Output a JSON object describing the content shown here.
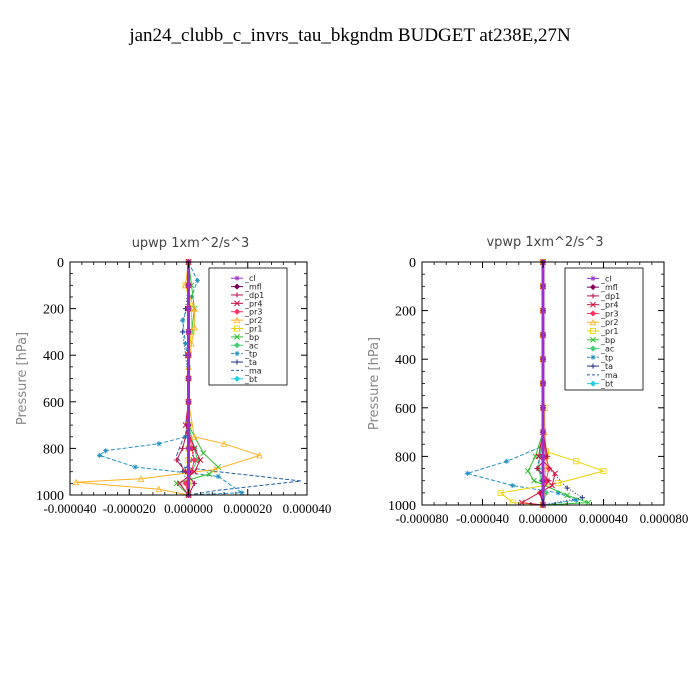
{
  "figure": {
    "title": "jan24_clubb_c_invrs_tau_bkgndm  BUDGET at238E,27N"
  },
  "legend_entries": [
    {
      "label": "_cl",
      "color": "#9b30d0",
      "marker": "star"
    },
    {
      "label": "_mfl",
      "color": "#800060",
      "marker": "diamond"
    },
    {
      "label": "_dp1",
      "color": "#c0104a",
      "marker": "plus"
    },
    {
      "label": "_pr4",
      "color": "#d01040",
      "marker": "cross"
    },
    {
      "label": "_pr3",
      "color": "#ff3060",
      "marker": "diamond"
    },
    {
      "label": "_pr2",
      "color": "#ffb020",
      "marker": "triangle"
    },
    {
      "label": "_pr1",
      "color": "#f0d000",
      "marker": "square"
    },
    {
      "label": "_bp",
      "color": "#30c030",
      "marker": "cross"
    },
    {
      "label": "_ac",
      "color": "#40d070",
      "marker": "diamond"
    },
    {
      "label": "_tp",
      "color": "#2090c0",
      "marker": "star"
    },
    {
      "label": "_ta",
      "color": "#203080",
      "marker": "plus"
    },
    {
      "label": "_ma",
      "color": "#2060a0",
      "marker": "none"
    },
    {
      "label": "_bt",
      "color": "#20d0e0",
      "marker": "diamond"
    }
  ],
  "chart_data": [
    {
      "type": "line",
      "title": "upwp   1xm^2/s^3",
      "ylabel": "Pressure [hPa]",
      "xlabel": "",
      "xlim": [
        -4e-05,
        4e-05
      ],
      "ylim": [
        1000,
        0
      ],
      "xticks": [
        -4e-05,
        -2e-05,
        0.0,
        2e-05,
        4e-05
      ],
      "xtick_labels": [
        "-0.000040",
        "-0.000020",
        "0.000000",
        "0.000020",
        "0.000040"
      ],
      "yticks": [
        0,
        200,
        400,
        600,
        800,
        1000
      ],
      "ytick_labels": [
        "0",
        "200",
        "400",
        "600",
        "800",
        "1000"
      ],
      "grid": false,
      "legend_position": "top-right",
      "series": [
        {
          "name": "_cl",
          "x": [
            0,
            0,
            0,
            0,
            0,
            0,
            0,
            0,
            0,
            0,
            0
          ],
          "y": [
            0,
            100,
            200,
            300,
            400,
            500,
            600,
            700,
            800,
            900,
            1000
          ]
        },
        {
          "name": "_mfl",
          "x": [
            0,
            0,
            0,
            0,
            0,
            0,
            0,
            0,
            0,
            0,
            0
          ],
          "y": [
            0,
            100,
            200,
            300,
            400,
            500,
            600,
            700,
            800,
            900,
            1000
          ]
        },
        {
          "name": "_dp1",
          "x": [
            0,
            0,
            0,
            0,
            0,
            0,
            0,
            0,
            -2e-06,
            -4e-06,
            -1e-06,
            2e-06,
            0
          ],
          "y": [
            0,
            100,
            200,
            300,
            400,
            500,
            600,
            700,
            800,
            850,
            900,
            950,
            1000
          ]
        },
        {
          "name": "_pr4",
          "x": [
            0,
            0,
            0,
            0,
            0,
            0,
            0,
            -1e-06,
            2e-06,
            4e-06,
            2e-06,
            -3e-06,
            0
          ],
          "y": [
            0,
            100,
            200,
            300,
            400,
            500,
            600,
            700,
            800,
            850,
            900,
            950,
            1000
          ]
        },
        {
          "name": "_pr3",
          "x": [
            0,
            0,
            0,
            0,
            0,
            0,
            0,
            0,
            1e-06,
            2e-06,
            1e-06,
            -1e-06,
            0
          ],
          "y": [
            0,
            100,
            200,
            300,
            400,
            500,
            600,
            700,
            800,
            850,
            900,
            950,
            1000
          ]
        },
        {
          "name": "_pr2",
          "x": [
            0,
            -1e-06,
            2e-06,
            2e-06,
            1e-06,
            0,
            0,
            2e-06,
            1.2e-05,
            2.4e-05,
            9e-06,
            -1.6e-05,
            -3.8e-05,
            -1e-05,
            0
          ],
          "y": [
            0,
            100,
            200,
            280,
            350,
            450,
            600,
            750,
            780,
            830,
            890,
            930,
            945,
            975,
            1000
          ]
        },
        {
          "name": "_pr1",
          "x": [
            0,
            -1e-06,
            1e-06,
            1e-06,
            0,
            0,
            0,
            0,
            0,
            0,
            0,
            0,
            0
          ],
          "y": [
            0,
            100,
            200,
            300,
            400,
            500,
            600,
            700,
            800,
            850,
            900,
            950,
            1000
          ]
        },
        {
          "name": "_bp",
          "x": [
            0,
            1e-06,
            2e-06,
            1e-06,
            0,
            0,
            0,
            0,
            5e-06,
            1e-05,
            7e-06,
            -4e-06,
            0
          ],
          "y": [
            0,
            100,
            200,
            300,
            400,
            500,
            600,
            700,
            820,
            880,
            910,
            950,
            1000
          ]
        },
        {
          "name": "_ac",
          "x": [
            0,
            0,
            0,
            0,
            0,
            0,
            0,
            0,
            2e-06,
            3e-06,
            1e-06,
            0,
            0
          ],
          "y": [
            0,
            100,
            200,
            300,
            400,
            500,
            600,
            700,
            800,
            850,
            900,
            950,
            1000
          ]
        },
        {
          "name": "_tp",
          "x": [
            0,
            3e-06,
            1e-06,
            -2e-06,
            -1e-06,
            0,
            0,
            -1e-06,
            -1e-05,
            -2.8e-05,
            -3e-05,
            -1.8e-05,
            1e-05,
            1.8e-05,
            0
          ],
          "y": [
            0,
            80,
            150,
            250,
            350,
            450,
            600,
            750,
            780,
            810,
            830,
            880,
            920,
            990,
            1000
          ]
        },
        {
          "name": "_ta",
          "x": [
            0,
            0,
            -1e-06,
            -2e-06,
            -1e-06,
            0,
            0,
            0,
            2e-06,
            1e-06,
            -2e-06,
            0,
            0
          ],
          "y": [
            0,
            100,
            200,
            300,
            400,
            500,
            600,
            700,
            800,
            850,
            900,
            950,
            1000
          ]
        },
        {
          "name": "_ma",
          "x": [
            0,
            0,
            0,
            0,
            0,
            0,
            0,
            0,
            -4e-06,
            -2e-06,
            1e-05,
            3.8e-05,
            1e-05,
            0
          ],
          "y": [
            0,
            100,
            200,
            300,
            400,
            500,
            600,
            700,
            830,
            880,
            900,
            940,
            980,
            1000
          ]
        },
        {
          "name": "_bt",
          "x": [
            0,
            0,
            0,
            0,
            0,
            0,
            0,
            0,
            0,
            0,
            0
          ],
          "y": [
            0,
            100,
            200,
            300,
            400,
            500,
            600,
            700,
            800,
            900,
            1000
          ]
        }
      ]
    },
    {
      "type": "line",
      "title": "vpwp   1xm^2/s^3",
      "ylabel": "Pressure [hPa]",
      "xlabel": "",
      "xlim": [
        -8e-05,
        8e-05
      ],
      "ylim": [
        1000,
        0
      ],
      "xticks": [
        -8e-05,
        -4e-05,
        0.0,
        4e-05,
        8e-05
      ],
      "xtick_labels": [
        "-0.000080",
        "-0.000040",
        "0.000000",
        "0.000040",
        "0.000080"
      ],
      "yticks": [
        0,
        200,
        400,
        600,
        800,
        1000
      ],
      "ytick_labels": [
        "0",
        "200",
        "400",
        "600",
        "800",
        "1000"
      ],
      "grid": false,
      "legend_position": "top-right",
      "series": [
        {
          "name": "_cl",
          "x": [
            0,
            0,
            0,
            0,
            0,
            0,
            0,
            0,
            0,
            0,
            0
          ],
          "y": [
            0,
            100,
            200,
            300,
            400,
            500,
            600,
            700,
            800,
            900,
            1000
          ]
        },
        {
          "name": "_mfl",
          "x": [
            0,
            0,
            0,
            0,
            0,
            0,
            0,
            0,
            0,
            0,
            0
          ],
          "y": [
            0,
            100,
            200,
            300,
            400,
            500,
            600,
            700,
            800,
            900,
            1000
          ]
        },
        {
          "name": "_dp1",
          "x": [
            0,
            0,
            0,
            0,
            0,
            0,
            0,
            0,
            3e-06,
            -4e-06,
            4e-06,
            -2e-06,
            0
          ],
          "y": [
            0,
            100,
            200,
            300,
            400,
            500,
            600,
            700,
            800,
            850,
            900,
            950,
            1000
          ]
        },
        {
          "name": "_pr4",
          "x": [
            0,
            0,
            0,
            0,
            0,
            0,
            0,
            0,
            -3e-06,
            8e-06,
            6e-06,
            -1.4e-05,
            0
          ],
          "y": [
            0,
            100,
            200,
            300,
            400,
            500,
            600,
            700,
            800,
            870,
            920,
            990,
            1000
          ]
        },
        {
          "name": "_pr3",
          "x": [
            0,
            0,
            0,
            0,
            0,
            0,
            0,
            0,
            2e-06,
            4e-06,
            2e-06,
            -2e-06,
            0
          ],
          "y": [
            0,
            100,
            200,
            300,
            400,
            500,
            600,
            700,
            800,
            850,
            900,
            950,
            1000
          ]
        },
        {
          "name": "_pr2",
          "x": [
            0,
            0,
            0,
            0,
            0,
            0,
            0,
            1e-06,
            2e-06,
            2e-06,
            1e-06,
            0,
            0
          ],
          "y": [
            0,
            100,
            200,
            300,
            400,
            500,
            600,
            700,
            800,
            850,
            900,
            950,
            1000
          ]
        },
        {
          "name": "_pr1",
          "x": [
            0,
            0,
            0,
            0,
            0,
            0,
            1e-06,
            2e-06,
            2.2e-05,
            4e-05,
            1e-05,
            -2.8e-05,
            -2e-05,
            0
          ],
          "y": [
            0,
            100,
            200,
            300,
            400,
            500,
            600,
            780,
            820,
            860,
            910,
            950,
            990,
            1000
          ]
        },
        {
          "name": "_bp",
          "x": [
            0,
            0,
            0,
            0,
            0,
            0,
            0,
            0,
            -5e-06,
            -1e-05,
            -6e-06,
            1.6e-05,
            3e-05,
            0
          ],
          "y": [
            0,
            100,
            200,
            300,
            400,
            500,
            600,
            700,
            800,
            860,
            900,
            960,
            990,
            1000
          ]
        },
        {
          "name": "_ac",
          "x": [
            0,
            0,
            0,
            0,
            0,
            0,
            0,
            0,
            -2e-06,
            -3e-06,
            -1e-06,
            2e-06,
            0
          ],
          "y": [
            0,
            100,
            200,
            300,
            400,
            500,
            600,
            700,
            800,
            850,
            900,
            950,
            1000
          ]
        },
        {
          "name": "_tp",
          "x": [
            0,
            0,
            0,
            0,
            0,
            0,
            0,
            -1e-06,
            -2.4e-05,
            -5e-05,
            -2e-05,
            1e-05,
            2.2e-05,
            0
          ],
          "y": [
            0,
            100,
            200,
            300,
            400,
            500,
            600,
            760,
            820,
            870,
            920,
            950,
            980,
            1000
          ]
        },
        {
          "name": "_ta",
          "x": [
            0,
            0,
            0,
            0,
            0,
            0,
            0,
            0,
            2e-06,
            4e-06,
            1.6e-05,
            2.6e-05,
            0
          ],
          "y": [
            0,
            100,
            200,
            300,
            400,
            500,
            600,
            700,
            800,
            850,
            930,
            970,
            1000
          ]
        },
        {
          "name": "_ma",
          "x": [
            0,
            0,
            0,
            0,
            0,
            0,
            0,
            0,
            -2e-06,
            -4e-06,
            2e-06,
            0,
            0
          ],
          "y": [
            0,
            100,
            200,
            300,
            400,
            500,
            600,
            700,
            800,
            850,
            900,
            950,
            1000
          ]
        },
        {
          "name": "_bt",
          "x": [
            0,
            0,
            0,
            0,
            0,
            0,
            0,
            0,
            0,
            0,
            0
          ],
          "y": [
            0,
            100,
            200,
            300,
            400,
            500,
            600,
            700,
            800,
            900,
            1000
          ]
        }
      ]
    }
  ]
}
